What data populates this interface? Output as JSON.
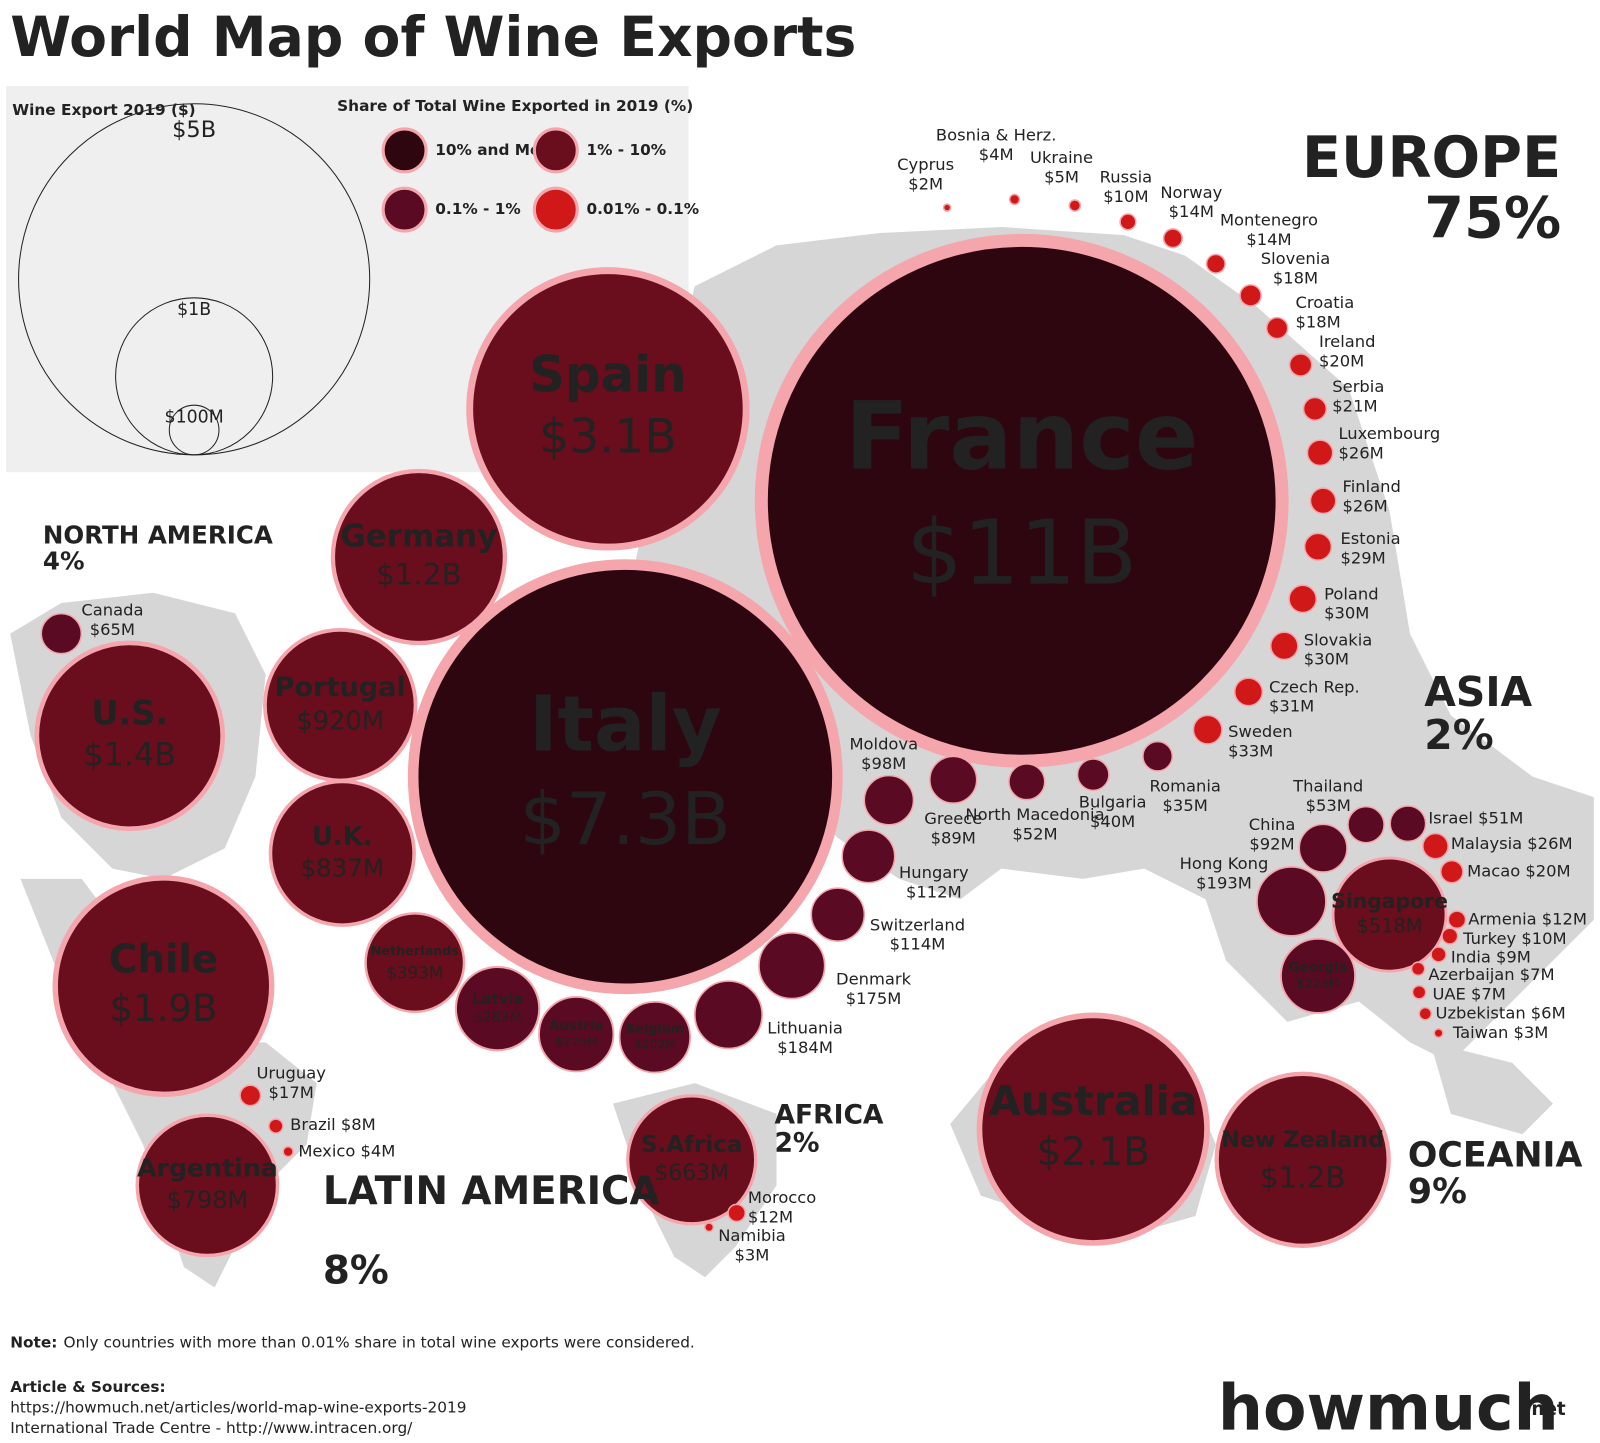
{
  "header": {
    "title": "World Map of Wine Exports"
  },
  "size_legend": {
    "title": "Wine Export 2019 ($)",
    "sizes": [
      {
        "value": 5000,
        "label": "$5B"
      },
      {
        "value": 1000,
        "label": "$1B"
      },
      {
        "value": 100,
        "label": "$100M"
      }
    ]
  },
  "color_legend": {
    "title": "Share of Total Wine Exported in 2019 (%)",
    "items": [
      {
        "label": "10% and More",
        "color": "#2e0610"
      },
      {
        "label": "1% - 10%",
        "color": "#6a0d1d"
      },
      {
        "label": "0.1% - 1%",
        "color": "#5a0a22"
      },
      {
        "label": "0.01% - 0.1%",
        "color": "#d01818"
      }
    ]
  },
  "regions": [
    {
      "name": "EUROPE",
      "share": "75%"
    },
    {
      "name": "NORTH AMERICA",
      "share": "4%"
    },
    {
      "name": "LATIN AMERICA",
      "share": "8%"
    },
    {
      "name": "AFRICA",
      "share": "2%"
    },
    {
      "name": "ASIA",
      "share": "2%"
    },
    {
      "name": "OCEANIA",
      "share": "9%"
    }
  ],
  "countries": [
    {
      "name": "France",
      "value": 11000,
      "label": "$11B",
      "color": "#2e0610"
    },
    {
      "name": "Italy",
      "value": 7300,
      "label": "$7.3B",
      "color": "#2e0610"
    },
    {
      "name": "Spain",
      "value": 3100,
      "label": "$3.1B",
      "color": "#6a0d1d"
    },
    {
      "name": "Australia",
      "value": 2100,
      "label": "$2.1B",
      "color": "#6a0d1d"
    },
    {
      "name": "Chile",
      "value": 1900,
      "label": "$1.9B",
      "color": "#6a0d1d"
    },
    {
      "name": "U.S.",
      "value": 1400,
      "label": "$1.4B",
      "color": "#6a0d1d"
    },
    {
      "name": "Germany",
      "value": 1200,
      "label": "$1.2B",
      "color": "#6a0d1d"
    },
    {
      "name": "New Zealand",
      "value": 1200,
      "label": "$1.2B",
      "color": "#6a0d1d"
    },
    {
      "name": "Portugal",
      "value": 920,
      "label": "$920M",
      "color": "#6a0d1d"
    },
    {
      "name": "U.K.",
      "value": 837,
      "label": "$837M",
      "color": "#6a0d1d"
    },
    {
      "name": "Argentina",
      "value": 798,
      "label": "$798M",
      "color": "#6a0d1d"
    },
    {
      "name": "S.Africa",
      "value": 663,
      "label": "$663M",
      "color": "#6a0d1d"
    },
    {
      "name": "Singapore",
      "value": 518,
      "label": "$518M",
      "color": "#6a0d1d"
    },
    {
      "name": "Netherlands",
      "value": 393,
      "label": "$393M",
      "color": "#6a0d1d"
    },
    {
      "name": "Latvia",
      "value": 282,
      "label": "$282M",
      "color": "#5a0a22"
    },
    {
      "name": "Austria",
      "value": 225,
      "label": "$225M",
      "color": "#5a0a22"
    },
    {
      "name": "Georgia",
      "value": 223,
      "label": "$223M",
      "color": "#5a0a22"
    },
    {
      "name": "Belgium",
      "value": 202,
      "label": "$202M",
      "color": "#5a0a22"
    },
    {
      "name": "Hong Kong",
      "value": 193,
      "label": "$193M",
      "color": "#5a0a22"
    },
    {
      "name": "Lithuania",
      "value": 184,
      "label": "$184M",
      "color": "#5a0a22"
    },
    {
      "name": "Denmark",
      "value": 175,
      "label": "$175M",
      "color": "#5a0a22"
    },
    {
      "name": "Switzerland",
      "value": 114,
      "label": "$114M",
      "color": "#5a0a22"
    },
    {
      "name": "Hungary",
      "value": 112,
      "label": "$112M",
      "color": "#5a0a22"
    },
    {
      "name": "Moldova",
      "value": 98,
      "label": "$98M",
      "color": "#5a0a22"
    },
    {
      "name": "China",
      "value": 92,
      "label": "$92M",
      "color": "#5a0a22"
    },
    {
      "name": "Greece",
      "value": 89,
      "label": "$89M",
      "color": "#5a0a22"
    },
    {
      "name": "Canada",
      "value": 65,
      "label": "$65M",
      "color": "#5a0a22"
    },
    {
      "name": "Thailand",
      "value": 53,
      "label": "$53M",
      "color": "#5a0a22"
    },
    {
      "name": "North Macedonia",
      "value": 52,
      "label": "$52M",
      "color": "#5a0a22"
    },
    {
      "name": "Israel",
      "value": 51,
      "label": "$51M",
      "color": "#5a0a22"
    },
    {
      "name": "Bulgaria",
      "value": 40,
      "label": "$40M",
      "color": "#5a0a22"
    },
    {
      "name": "Romania",
      "value": 35,
      "label": "$35M",
      "color": "#5a0a22"
    },
    {
      "name": "Sweden",
      "value": 33,
      "label": "$33M",
      "color": "#d01818"
    },
    {
      "name": "Czech Rep.",
      "value": 31,
      "label": "$31M",
      "color": "#d01818"
    },
    {
      "name": "Slovakia",
      "value": 30,
      "label": "$30M",
      "color": "#d01818"
    },
    {
      "name": "Poland",
      "value": 30,
      "label": "$30M",
      "color": "#d01818"
    },
    {
      "name": "Estonia",
      "value": 29,
      "label": "$29M",
      "color": "#d01818"
    },
    {
      "name": "Finland",
      "value": 26,
      "label": "$26M",
      "color": "#d01818"
    },
    {
      "name": "Luxembourg",
      "value": 26,
      "label": "$26M",
      "color": "#d01818"
    },
    {
      "name": "Malaysia",
      "value": 26,
      "label": "$26M",
      "color": "#d01818"
    },
    {
      "name": "Serbia",
      "value": 21,
      "label": "$21M",
      "color": "#d01818"
    },
    {
      "name": "Ireland",
      "value": 20,
      "label": "$20M",
      "color": "#d01818"
    },
    {
      "name": "Macao",
      "value": 20,
      "label": "$20M",
      "color": "#d01818"
    },
    {
      "name": "Croatia",
      "value": 18,
      "label": "$18M",
      "color": "#d01818"
    },
    {
      "name": "Slovenia",
      "value": 18,
      "label": "$18M",
      "color": "#d01818"
    },
    {
      "name": "Uruguay",
      "value": 17,
      "label": "$17M",
      "color": "#d01818"
    },
    {
      "name": "Norway",
      "value": 14,
      "label": "$14M",
      "color": "#d01818"
    },
    {
      "name": "Montenegro",
      "value": 14,
      "label": "$14M",
      "color": "#d01818"
    },
    {
      "name": "Armenia",
      "value": 12,
      "label": "$12M",
      "color": "#d01818"
    },
    {
      "name": "Morocco",
      "value": 12,
      "label": "$12M",
      "color": "#d01818"
    },
    {
      "name": "Turkey",
      "value": 10,
      "label": "$10M",
      "color": "#d01818"
    },
    {
      "name": "Russia",
      "value": 10,
      "label": "$10M",
      "color": "#d01818"
    },
    {
      "name": "India",
      "value": 9,
      "label": "$9M",
      "color": "#d01818"
    },
    {
      "name": "Brazil",
      "value": 8,
      "label": "$8M",
      "color": "#d01818"
    },
    {
      "name": "Azerbaijan",
      "value": 7,
      "label": "$7M",
      "color": "#d01818"
    },
    {
      "name": "UAE",
      "value": 7,
      "label": "$7M",
      "color": "#d01818"
    },
    {
      "name": "Uzbekistan",
      "value": 6,
      "label": "$6M",
      "color": "#d01818"
    },
    {
      "name": "Ukraine",
      "value": 5,
      "label": "$5M",
      "color": "#d01818"
    },
    {
      "name": "Bosnia & Herz.",
      "value": 4,
      "label": "$4M",
      "color": "#d01818"
    },
    {
      "name": "Mexico",
      "value": 4,
      "label": "$4M",
      "color": "#d01818"
    },
    {
      "name": "Cyprus",
      "value": 2,
      "label": "$2M",
      "color": "#d01818"
    },
    {
      "name": "Taiwan",
      "value": 3,
      "label": "$3M",
      "color": "#d01818"
    },
    {
      "name": "Namibia",
      "value": 3,
      "label": "$3M",
      "color": "#d01818"
    }
  ],
  "footer": {
    "note_label": "Note:",
    "note": "Only countries with more than 0.01% share in total wine exports were considered.",
    "sources_label": "Article & Sources:",
    "article": "https://howmuch.net/articles/world-map-wine-exports-2019",
    "source": "International Trade Centre - http://www.intracen.org/",
    "logo_main": "howmuch",
    "logo_suffix": ".net"
  }
}
